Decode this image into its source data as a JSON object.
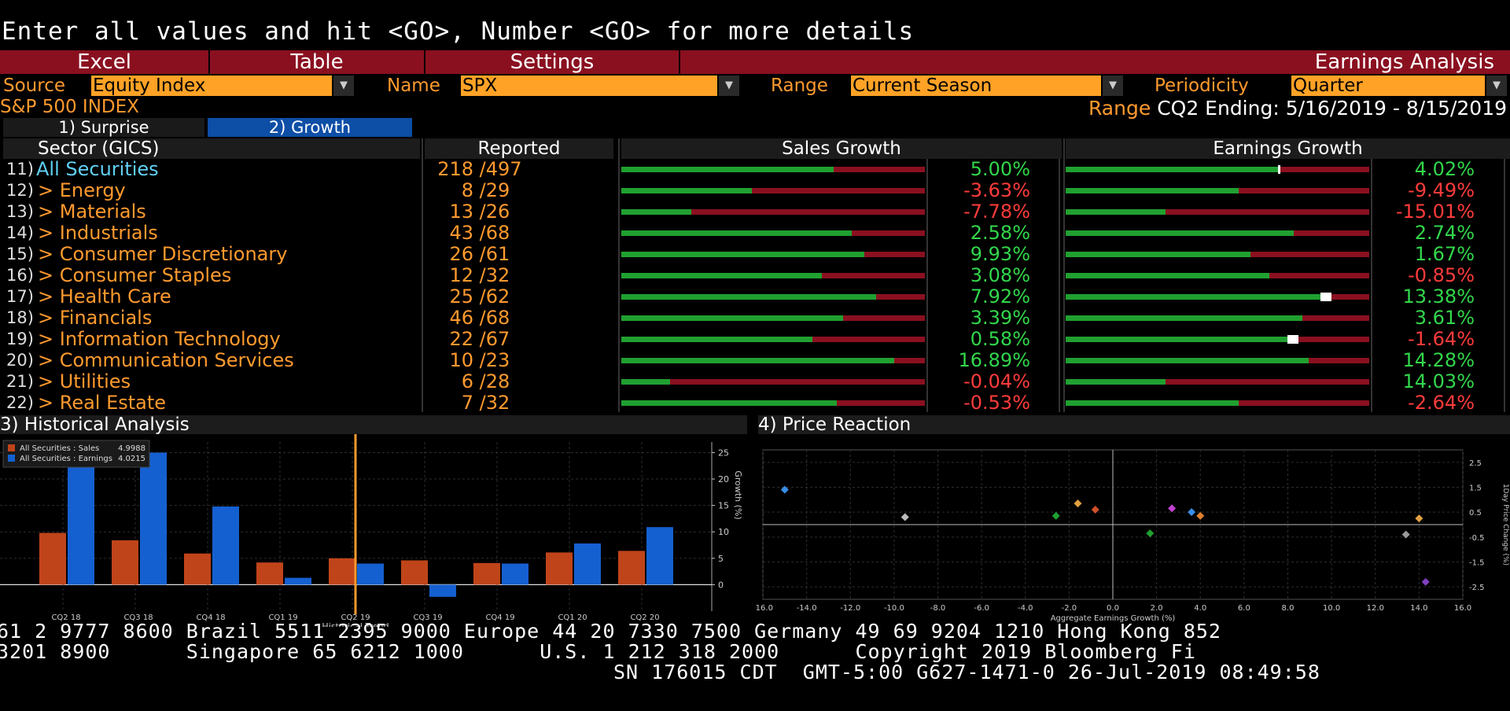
{
  "command_line": "Enter all values and hit <GO>, Number <GO> for more details",
  "menu": {
    "excel": "Excel",
    "table": "Table",
    "settings": "Settings",
    "title": "Earnings Analysis"
  },
  "params": {
    "source_label": "Source",
    "source_value": "Equity Index",
    "name_label": "Name",
    "name_value": "SPX",
    "range_label": "Range",
    "range_value": "Current Season",
    "periodicity_label": "Periodicity",
    "periodicity_value": "Quarter"
  },
  "index_name": "S&P 500 INDEX",
  "range_info": {
    "label": "Range",
    "value": "CQ2 Ending: 5/16/2019 - 8/15/2019"
  },
  "tabs": [
    {
      "label": "1) Surprise",
      "active": false
    },
    {
      "label": "2) Growth",
      "active": true
    }
  ],
  "table_headers": {
    "sector": "Sector (GICS)",
    "reported": "Reported",
    "sales": "Sales Growth",
    "earnings": "Earnings Growth"
  },
  "rows": [
    {
      "num": "11)",
      "sector": "All Securities",
      "reported": "218",
      "total": "/497",
      "sales": "5.00%",
      "sales_val": 5.0,
      "earn": "4.02%",
      "earn_val": 4.02
    },
    {
      "num": "12)",
      "sector": "> Energy",
      "reported": "8",
      "total": "/29",
      "sales": "-3.63%",
      "sales_val": -3.63,
      "earn": "-9.49%",
      "earn_val": -9.49
    },
    {
      "num": "13)",
      "sector": "> Materials",
      "reported": "13",
      "total": "/26",
      "sales": "-7.78%",
      "sales_val": -7.78,
      "earn": "-15.01%",
      "earn_val": -15.01
    },
    {
      "num": "14)",
      "sector": "> Industrials",
      "reported": "43",
      "total": "/68",
      "sales": "2.58%",
      "sales_val": 2.58,
      "earn": "2.74%",
      "earn_val": 2.74
    },
    {
      "num": "15)",
      "sector": "> Consumer Discretionary",
      "reported": "26",
      "total": "/61",
      "sales": "9.93%",
      "sales_val": 9.93,
      "earn": "1.67%",
      "earn_val": 1.67
    },
    {
      "num": "16)",
      "sector": "> Consumer Staples",
      "reported": "12",
      "total": "/32",
      "sales": "3.08%",
      "sales_val": 3.08,
      "earn": "-0.85%",
      "earn_val": -0.85
    },
    {
      "num": "17)",
      "sector": "> Health Care",
      "reported": "25",
      "total": "/62",
      "sales": "7.92%",
      "sales_val": 7.92,
      "earn": "13.38%",
      "earn_val": 13.38
    },
    {
      "num": "18)",
      "sector": "> Financials",
      "reported": "46",
      "total": "/68",
      "sales": "3.39%",
      "sales_val": 3.39,
      "earn": "3.61%",
      "earn_val": 3.61
    },
    {
      "num": "19)",
      "sector": "> Information Technology",
      "reported": "22",
      "total": "/67",
      "sales": "0.58%",
      "sales_val": 0.58,
      "earn": "-1.64%",
      "earn_val": -1.64
    },
    {
      "num": "20)",
      "sector": "> Communication Services",
      "reported": "10",
      "total": "/23",
      "sales": "16.89%",
      "sales_val": 16.89,
      "earn": "14.28%",
      "earn_val": 14.28
    },
    {
      "num": "21)",
      "sector": "> Utilities",
      "reported": "6",
      "total": "/28",
      "sales": "-0.04%",
      "sales_val": -0.04,
      "earn": "14.03%",
      "earn_val": 14.03
    },
    {
      "num": "22)",
      "sector": "> Real Estate",
      "reported": "7",
      "total": "/32",
      "sales": "-0.53%",
      "sales_val": -0.53,
      "earn": "-2.64%",
      "earn_val": -2.64
    }
  ],
  "bar_fill": {
    "sales": [
      0.7,
      0.43,
      0.23,
      0.76,
      0.8,
      0.66,
      0.84,
      0.73,
      0.63,
      0.9,
      0.16,
      0.71
    ],
    "earnings": [
      0.7,
      0.57,
      0.33,
      0.75,
      0.61,
      0.67,
      0.84,
      0.78,
      0.73,
      0.8,
      0.33,
      0.57
    ],
    "earnings_marker": [
      true,
      false,
      false,
      false,
      false,
      false,
      true,
      false,
      true,
      false,
      false,
      false
    ]
  },
  "colors": {
    "accent_orange": "#ff9a2e",
    "menu_red": "#8a1020",
    "positive": "#32d74b",
    "negative": "#ff3b3b",
    "sales_bar": "#c0441a",
    "earnings_bar": "#1560d0"
  },
  "panels": {
    "historical_title": "3) Historical Analysis",
    "price_title": "4) Price Reaction"
  },
  "chart_data": [
    {
      "type": "bar",
      "categories": [
        "CQ2 18",
        "CQ3 18",
        "CQ4 18",
        "CQ1 19",
        "CQ2 19",
        "CQ3 19",
        "CQ4 19",
        "CQ1 20",
        "CQ2 20"
      ],
      "series": [
        {
          "name": "All Securities : Sales",
          "legend_value": "4.9988",
          "color": "#c0441a",
          "values": [
            9.8,
            8.4,
            5.9,
            4.2,
            5.0,
            4.6,
            4.1,
            6.1,
            6.4
          ]
        },
        {
          "name": "All Securities : Earnings",
          "legend_value": "4.0215",
          "color": "#1560d0",
          "values": [
            24.5,
            25.0,
            14.8,
            1.3,
            4.0,
            -2.3,
            4.0,
            7.8,
            10.9
          ]
        }
      ],
      "xlabel": "Historical Trend",
      "ylabel": "Growth (%)",
      "yticks": [
        0,
        5,
        10,
        15,
        20,
        25
      ],
      "ylim": [
        -5,
        27
      ],
      "current_marker": "CQ2 19",
      "grid": true,
      "legend": "top-left"
    },
    {
      "type": "scatter",
      "xlabel": "Aggregate Earnings Growth (%)",
      "ylabel": "1Day Price Change (%)",
      "xticks": [
        "-16.0",
        "-14.0",
        "-12.0",
        "-10.0",
        "-8.0",
        "-6.0",
        "-4.0",
        "-2.0",
        "0.0",
        "2.0",
        "4.0",
        "6.0",
        "8.0",
        "10.0",
        "12.0",
        "14.0",
        "16.0"
      ],
      "yticks": [
        "2.5",
        "1.5",
        "0.5",
        "-0.5",
        "-1.5",
        "-2.5"
      ],
      "xlim": [
        -16.0,
        16.0
      ],
      "ylim": [
        -3.0,
        3.0
      ],
      "grid": true,
      "points": [
        {
          "x": -15.0,
          "y": 1.4,
          "color": "#3a8ee6"
        },
        {
          "x": -9.5,
          "y": 0.3,
          "color": "#bbbbbb"
        },
        {
          "x": -2.6,
          "y": 0.35,
          "color": "#20a030"
        },
        {
          "x": -1.6,
          "y": 0.85,
          "color": "#e0a040"
        },
        {
          "x": -0.8,
          "y": 0.6,
          "color": "#d0502a"
        },
        {
          "x": 1.7,
          "y": -0.35,
          "color": "#20a030"
        },
        {
          "x": 2.7,
          "y": 0.65,
          "color": "#c040d0"
        },
        {
          "x": 3.6,
          "y": 0.5,
          "color": "#3a8ee6"
        },
        {
          "x": 4.0,
          "y": 0.35,
          "color": "#e08030"
        },
        {
          "x": 13.4,
          "y": -0.4,
          "color": "#999999"
        },
        {
          "x": 14.0,
          "y": 0.25,
          "color": "#e0a040"
        },
        {
          "x": 14.3,
          "y": -2.3,
          "color": "#8040c0"
        }
      ]
    }
  ],
  "footer": {
    "line1": "61 2 9777 8600 Brazil 5511 2395 9000 Europe 44 20 7330 7500 Germany 49 69 9204 1210 Hong Kong 852",
    "line2": "3201 8900      Singapore 65 6212 1000      U.S. 1 212 318 2000      Copyright 2019 Bloomberg Fi",
    "line3": "SN 176015 CDT  GMT-5:00 G627-1471-0 26-Jul-2019 08:49:58"
  }
}
